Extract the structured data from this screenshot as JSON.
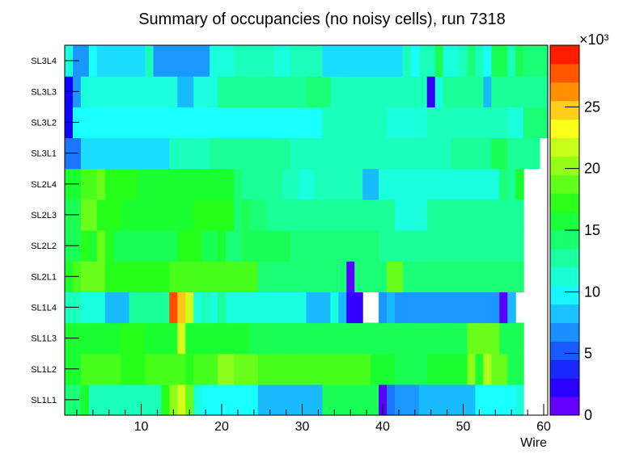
{
  "chart_data": {
    "type": "heatmap",
    "title": "Summary of occupancies (no noisy cells), run 7318",
    "xlabel": "Wire",
    "ylabel": "",
    "x_range": [
      0.5,
      60.5
    ],
    "x_ticks": [
      10,
      20,
      30,
      40,
      50,
      60
    ],
    "rows": [
      "SL1L1",
      "SL1L2",
      "SL1L3",
      "SL1L4",
      "SL2L1",
      "SL2L2",
      "SL2L3",
      "SL2L4",
      "SL3L1",
      "SL3L2",
      "SL3L3",
      "SL3L4"
    ],
    "z_range": [
      0,
      30000
    ],
    "colorbar_ticks": [
      0,
      5,
      10,
      15,
      20,
      25
    ],
    "colorbar_exponent": "×10³",
    "values_thousands": [
      [
        14,
        14,
        16,
        12,
        12,
        12,
        12,
        12,
        12,
        12,
        12,
        12,
        17,
        20,
        22,
        19,
        11,
        10,
        10,
        10,
        10,
        10,
        10,
        10,
        8,
        8,
        8,
        8,
        8,
        8,
        8,
        8,
        15,
        15,
        15,
        15,
        15,
        15,
        15,
        1,
        6,
        7,
        7,
        7,
        8,
        8,
        8,
        8,
        8,
        8,
        8,
        10,
        10,
        10,
        10,
        10,
        11,
        0,
        0,
        0
      ],
      [
        16,
        16,
        18,
        18,
        18,
        18,
        18,
        17,
        17,
        17,
        18,
        18,
        18,
        18,
        18,
        17,
        18,
        18,
        18,
        20,
        20,
        19,
        19,
        19,
        18,
        18,
        18,
        18,
        18,
        18,
        18,
        18,
        18,
        18,
        18,
        18,
        18,
        18,
        16,
        16,
        16,
        15,
        15,
        15,
        15,
        16,
        16,
        16,
        16,
        16,
        20,
        16,
        21,
        19,
        19,
        15,
        15,
        0,
        0,
        0
      ],
      [
        16,
        16,
        16,
        16,
        16,
        16,
        16,
        17,
        17,
        17,
        16,
        16,
        16,
        16,
        22,
        16,
        16,
        16,
        16,
        16,
        16,
        16,
        16,
        15,
        15,
        15,
        15,
        15,
        15,
        15,
        15,
        15,
        15,
        15,
        15,
        15,
        15,
        15,
        15,
        15,
        15,
        15,
        15,
        15,
        15,
        15,
        15,
        15,
        15,
        15,
        19,
        19,
        19,
        19,
        15,
        15,
        15,
        0,
        0,
        0
      ],
      [
        12,
        12,
        11,
        11,
        11,
        8,
        8,
        8,
        13,
        13,
        13,
        13,
        13,
        28,
        25,
        22,
        11,
        12,
        11,
        13,
        11,
        11,
        11,
        11,
        11,
        11,
        11,
        11,
        11,
        11,
        8,
        8,
        8,
        11,
        8,
        2,
        2,
        0,
        0,
        7,
        8,
        7,
        7,
        7,
        7,
        7,
        7,
        7,
        7,
        7,
        7,
        7,
        7,
        7,
        1,
        8,
        0,
        0,
        0,
        0
      ],
      [
        16,
        18,
        19,
        19,
        19,
        17,
        17,
        17,
        17,
        17,
        17,
        17,
        17,
        18,
        18,
        18,
        18,
        18,
        18,
        18,
        18,
        18,
        18,
        18,
        14,
        14,
        14,
        14,
        14,
        14,
        14,
        14,
        14,
        14,
        14,
        1,
        14,
        14,
        14,
        14,
        19,
        19,
        14,
        14,
        14,
        14,
        14,
        14,
        14,
        14,
        14,
        14,
        14,
        14,
        14,
        14,
        14,
        0,
        0,
        0
      ],
      [
        15,
        15,
        17,
        16,
        19,
        17,
        15,
        15,
        15,
        15,
        15,
        15,
        15,
        15,
        17,
        17,
        17,
        15,
        15,
        16,
        14,
        14,
        15,
        15,
        15,
        15,
        15,
        15,
        14,
        14,
        14,
        14,
        14,
        14,
        14,
        14,
        14,
        14,
        14,
        13,
        13,
        13,
        13,
        13,
        13,
        13,
        13,
        13,
        13,
        13,
        13,
        13,
        13,
        13,
        13,
        13,
        13,
        0,
        0,
        0
      ],
      [
        15,
        15,
        19,
        19,
        17,
        17,
        17,
        16,
        16,
        16,
        16,
        16,
        16,
        16,
        16,
        16,
        17,
        17,
        17,
        17,
        17,
        14,
        15,
        14,
        14,
        13,
        13,
        13,
        13,
        13,
        13,
        13,
        13,
        13,
        13,
        13,
        13,
        13,
        13,
        13,
        13,
        11,
        11,
        11,
        11,
        13,
        13,
        13,
        13,
        13,
        13,
        13,
        13,
        13,
        13,
        13,
        13,
        0,
        0,
        0
      ],
      [
        16,
        16,
        18,
        18,
        19,
        17,
        17,
        17,
        17,
        16,
        16,
        16,
        16,
        16,
        16,
        16,
        16,
        16,
        16,
        16,
        16,
        14,
        13,
        13,
        13,
        13,
        13,
        12,
        12,
        11,
        11,
        12,
        12,
        12,
        12,
        12,
        12,
        8,
        8,
        11,
        11,
        11,
        11,
        11,
        11,
        11,
        11,
        11,
        11,
        11,
        11,
        11,
        11,
        11,
        14,
        13,
        16,
        0,
        0,
        0
      ],
      [
        6,
        6,
        9,
        9,
        9,
        9,
        9,
        9,
        9,
        9,
        9,
        9,
        9,
        12,
        12,
        12,
        12,
        12,
        13,
        13,
        13,
        13,
        13,
        13,
        13,
        13,
        13,
        13,
        12,
        12,
        12,
        12,
        12,
        12,
        12,
        12,
        12,
        12,
        12,
        12,
        12,
        12,
        12,
        12,
        12,
        12,
        12,
        12,
        13,
        13,
        13,
        13,
        13,
        15,
        15,
        13,
        13,
        13,
        13,
        0
      ],
      [
        3,
        10,
        10,
        10,
        10,
        10,
        10,
        10,
        10,
        10,
        10,
        10,
        10,
        10,
        10,
        10,
        10,
        10,
        10,
        10,
        10,
        10,
        10,
        10,
        10,
        10,
        10,
        10,
        10,
        10,
        10,
        10,
        12,
        12,
        12,
        12,
        12,
        12,
        12,
        12,
        11,
        11,
        11,
        11,
        11,
        12,
        12,
        12,
        12,
        12,
        12,
        12,
        12,
        12,
        12,
        11,
        11,
        14,
        14,
        14
      ],
      [
        3,
        7,
        11,
        11,
        11,
        11,
        11,
        11,
        11,
        11,
        11,
        11,
        11,
        11,
        8,
        8,
        11,
        11,
        11,
        13,
        13,
        13,
        13,
        13,
        13,
        13,
        13,
        13,
        13,
        13,
        14,
        14,
        14,
        12,
        12,
        12,
        12,
        12,
        12,
        12,
        12,
        12,
        12,
        12,
        12,
        2,
        11,
        13,
        13,
        13,
        13,
        13,
        8,
        13,
        13,
        13,
        13,
        13,
        13,
        13
      ],
      [
        11,
        7,
        7,
        10,
        9,
        9,
        9,
        9,
        9,
        9,
        12,
        7,
        7,
        7,
        7,
        7,
        7,
        7,
        11,
        11,
        11,
        12,
        12,
        12,
        12,
        12,
        11,
        11,
        12,
        12,
        12,
        12,
        9,
        9,
        9,
        9,
        9,
        9,
        9,
        9,
        9,
        9,
        12,
        10,
        12,
        12,
        15,
        11,
        11,
        12,
        14,
        12,
        10,
        15,
        15,
        12,
        15,
        14,
        14,
        14
      ]
    ]
  }
}
